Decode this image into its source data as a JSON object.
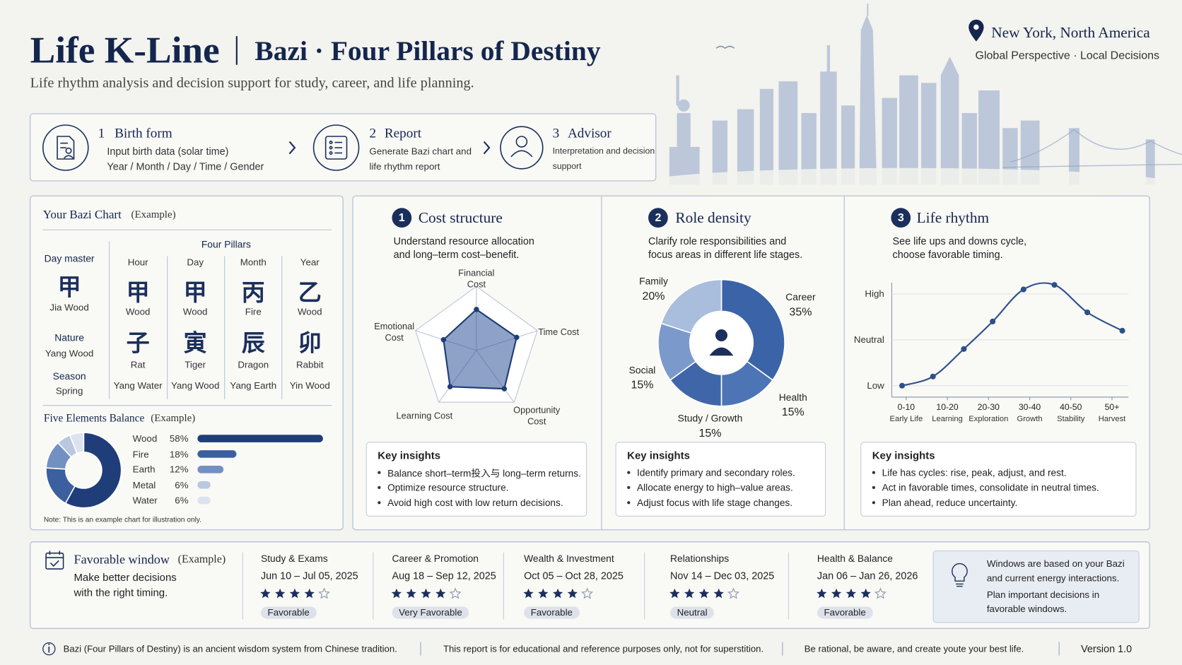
{
  "header": {
    "title": "Life K-Line",
    "subtitle": "Bazi · Four Pillars of Destiny",
    "tagline": "Life rhythm analysis and decision support for study, career, and life planning.",
    "location": "New York, North America",
    "location_tagline": "Global Perspective · Local Decisions"
  },
  "steps": [
    {
      "number": 1,
      "title": "Birth form",
      "lines": [
        "Input birth data (solar time)",
        "Year / Month / Day / Time / Gender"
      ]
    },
    {
      "number": 2,
      "title": "Report",
      "lines": [
        "Generate Bazi chart and",
        "life rhythm report"
      ]
    },
    {
      "number": 3,
      "title": "Advisor",
      "lines": [
        "Interpretation and decision",
        "support"
      ]
    }
  ],
  "bazi_chart": {
    "title": "Your Bazi Chart",
    "tag": "(Example)",
    "day_master": {
      "label": "Day master",
      "char": "甲",
      "name": "Jia Wood"
    },
    "nature": {
      "label": "Nature",
      "value": "Yang Wood"
    },
    "season": {
      "label": "Season",
      "value": "Spring"
    },
    "pillars_title": "Four Pillars",
    "pillars": [
      {
        "name": "Hour",
        "stem": "甲",
        "stem_element": "Wood",
        "branch": "子",
        "animal": "Rat",
        "branch_element": "Yang Water"
      },
      {
        "name": "Day",
        "stem": "甲",
        "stem_element": "Wood",
        "branch": "寅",
        "animal": "Tiger",
        "branch_element": "Yang Wood"
      },
      {
        "name": "Month",
        "stem": "丙",
        "stem_element": "Fire",
        "branch": "辰",
        "animal": "Dragon",
        "branch_element": "Yang Earth"
      },
      {
        "name": "Year",
        "stem": "乙",
        "stem_element": "Wood",
        "branch": "卯",
        "animal": "Rabbit",
        "branch_element": "Yin Wood"
      }
    ]
  },
  "five_elements": {
    "type": "bar",
    "title": "Five Elements Balance",
    "tag": "(Example)",
    "categories": [
      "Wood",
      "Fire",
      "Earth",
      "Metal",
      "Water"
    ],
    "values": [
      58,
      18,
      12,
      6,
      6
    ],
    "value_labels": [
      "58%",
      "18%",
      "12%",
      "6%",
      "6%"
    ],
    "colors": [
      "#1f3d78",
      "#3b5f9f",
      "#7390c3",
      "#b9c7e0",
      "#dde3ee"
    ],
    "note": "Note: This is an example chart for illustration only."
  },
  "panels": [
    {
      "number": 1,
      "title": "Cost structure",
      "description": [
        "Understand resource allocation",
        "and long–term cost–benefit."
      ],
      "chart": {
        "type": "radar",
        "axes": [
          "Financial Cost",
          "Time Cost",
          "Opportunity Cost",
          "Learning Cost",
          "Emotional Cost"
        ],
        "values": [
          3.2,
          3.3,
          3.7,
          3.5,
          2.7
        ],
        "rlim": [
          0,
          5
        ],
        "rticks": [
          1,
          2,
          3,
          4,
          5
        ],
        "color": "#2f5597"
      },
      "insights_title": "Key insights",
      "insights": [
        "Balance short–term投入与 long–term returns.",
        "Optimize resource structure.",
        "Avoid high cost with low return decisions."
      ]
    },
    {
      "number": 2,
      "title": "Role density",
      "description": [
        "Clarify role responsibilities and",
        "focus areas in different life stages."
      ],
      "chart": {
        "type": "donut",
        "categories": [
          "Career",
          "Health",
          "Study / Growth",
          "Social",
          "Family"
        ],
        "values": [
          35,
          15,
          15,
          15,
          20
        ],
        "value_labels": [
          "35%",
          "15%",
          "15%",
          "15%",
          "20%"
        ],
        "colors": [
          "#3b63a8",
          "#4d74b4",
          "#3f66a9",
          "#7b99cb",
          "#a9bddd"
        ]
      },
      "insights_title": "Key insights",
      "insights": [
        "Identify primary and secondary roles.",
        "Allocate energy to high–value areas.",
        "Adjust focus with life stage changes."
      ]
    },
    {
      "number": 3,
      "title": "Life rhythm",
      "description": [
        "See life ups and downs cycle,",
        "choose favorable timing."
      ],
      "chart": {
        "type": "line",
        "x": [
          4,
          11.5,
          19,
          26,
          33.5,
          41,
          49,
          57.5
        ],
        "values": [
          0,
          0.2,
          0.8,
          1.4,
          2.1,
          2.2,
          1.6,
          1.2
        ],
        "xlim": [
          1.5,
          59
        ],
        "xticks": [
          {
            "value": 5,
            "label": "0-10"
          },
          {
            "value": 15,
            "label": "10-20"
          },
          {
            "value": 25,
            "label": "20-30"
          },
          {
            "value": 35,
            "label": "30-40"
          },
          {
            "value": 45,
            "label": "40-50"
          },
          {
            "value": 55,
            "label": "50+"
          }
        ],
        "x_sublabels": [
          "Early Life",
          "Learning",
          "Exploration",
          "Growth",
          "Stability",
          "Harvest"
        ],
        "ylim": [
          -0.25,
          2.25
        ],
        "yticks": [
          {
            "value": 0,
            "label": "Low"
          },
          {
            "value": 1,
            "label": "Neutral"
          },
          {
            "value": 2,
            "label": "High"
          }
        ],
        "grid": true,
        "color": "#2f4f8a"
      },
      "insights_title": "Key insights",
      "insights": [
        "Life has cycles: rise, peak, adjust, and rest.",
        "Act in favorable times, consolidate in neutral times.",
        "Plan ahead, reduce uncertainty."
      ]
    }
  ],
  "favorable": {
    "title": "Favorable window",
    "tag": "(Example)",
    "description": [
      "Make better decisions",
      "with the right timing."
    ],
    "rating_scale": 5,
    "windows": [
      {
        "category": "Study & Exams",
        "dates": "Jun 10 – Jul 05, 2025",
        "rating": 4,
        "status": "Favorable"
      },
      {
        "category": "Career & Promotion",
        "dates": "Aug 18 – Sep 12, 2025",
        "rating": 4,
        "status": "Very Favorable"
      },
      {
        "category": "Wealth & Investment",
        "dates": "Oct 05 – Oct 28, 2025",
        "rating": 4,
        "status": "Favorable"
      },
      {
        "category": "Relationships",
        "dates": "Nov 14 – Dec 03, 2025",
        "rating": 4,
        "status": "Neutral"
      },
      {
        "category": "Health & Balance",
        "dates": "Jan 06 – Jan 26, 2026",
        "rating": 4,
        "status": "Favorable"
      }
    ],
    "info": [
      "Windows are based on your Bazi and current energy interactions.",
      "Plan important decisions in favorable windows."
    ]
  },
  "footer": {
    "notes": [
      "Bazi (Four Pillars of Destiny) is an ancient wisdom system from Chinese tradition.",
      "This report is for educational and reference purposes only, not for superstition.",
      "Be rational, be aware, and create youte your best life."
    ],
    "version": "Version 1.0"
  }
}
